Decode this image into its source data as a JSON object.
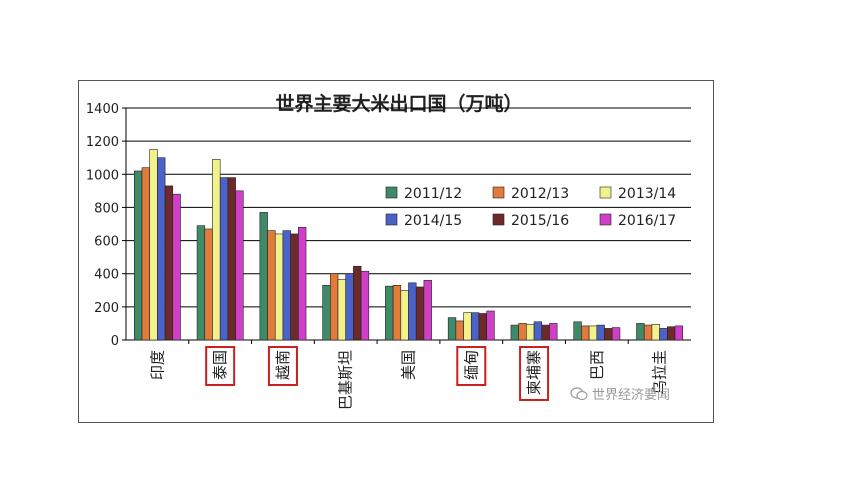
{
  "chart_data": {
    "type": "bar",
    "title": "世界主要大米出口国（万吨）",
    "categories": [
      "印度",
      "泰国",
      "越南",
      "巴基斯坦",
      "美国",
      "缅甸",
      "柬埔寨",
      "巴西",
      "乌拉圭"
    ],
    "highlighted_categories": [
      "泰国",
      "越南",
      "缅甸",
      "柬埔寨"
    ],
    "highlight_color": "#cc1f1f",
    "ylim": [
      0,
      1400
    ],
    "yticks": [
      0,
      200,
      400,
      600,
      800,
      1000,
      1200,
      1400
    ],
    "grid": true,
    "legend_position": "center-right",
    "series": [
      {
        "name": "2011/12",
        "color": "#3f8a68",
        "values": [
          1020,
          690,
          770,
          330,
          325,
          135,
          90,
          110,
          100
        ]
      },
      {
        "name": "2012/13",
        "color": "#e07b3c",
        "values": [
          1040,
          670,
          660,
          400,
          330,
          115,
          100,
          85,
          90
        ]
      },
      {
        "name": "2013/14",
        "color": "#f2f28c",
        "values": [
          1150,
          1090,
          640,
          365,
          300,
          165,
          95,
          85,
          95
        ]
      },
      {
        "name": "2014/15",
        "color": "#4b63c8",
        "values": [
          1100,
          980,
          660,
          400,
          345,
          165,
          110,
          90,
          70
        ]
      },
      {
        "name": "2015/16",
        "color": "#6e2a2a",
        "values": [
          930,
          980,
          640,
          445,
          320,
          160,
          90,
          70,
          80
        ]
      },
      {
        "name": "2016/17",
        "color": "#d03fc8",
        "values": [
          880,
          900,
          680,
          415,
          360,
          175,
          100,
          75,
          85
        ]
      }
    ]
  },
  "watermark": {
    "text": "世界经济要闻",
    "icon": "wechat-icon"
  }
}
